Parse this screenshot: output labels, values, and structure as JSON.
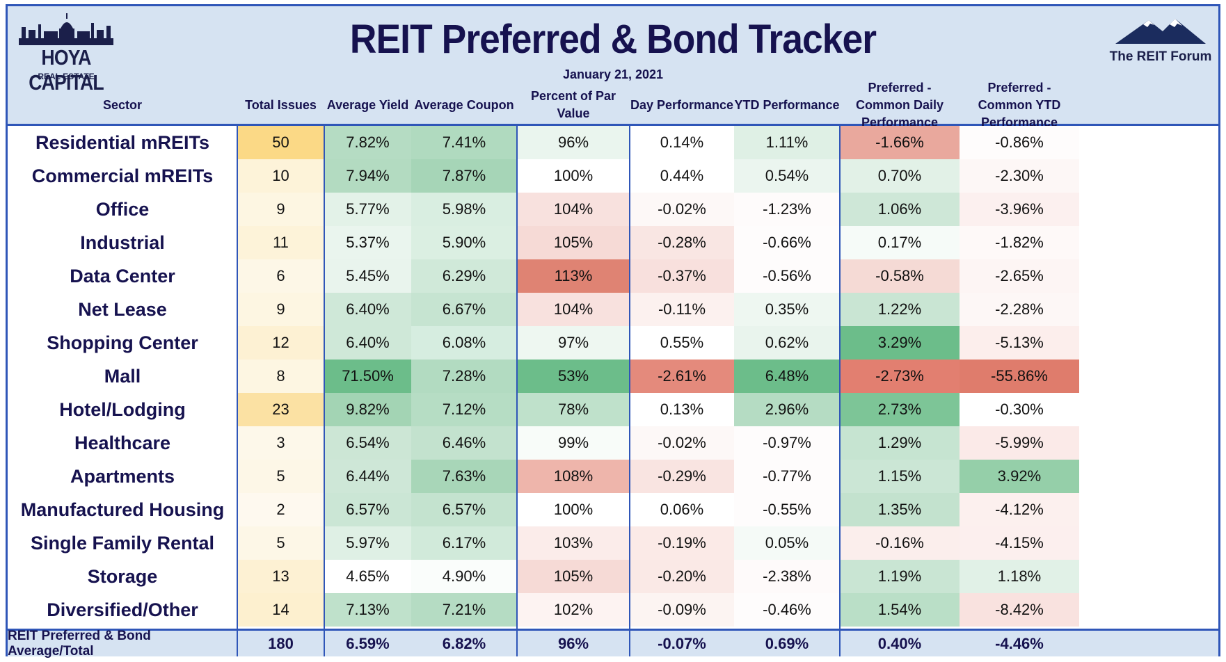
{
  "header": {
    "title": "REIT Preferred & Bond Tracker",
    "date": "January 21, 2021",
    "logo_left_line1": "HOYA CAPITAL",
    "logo_left_line2": "REAL ESTATE",
    "logo_right": "The REIT Forum"
  },
  "columns": [
    "Sector",
    "Total Issues",
    "Average Yield",
    "Average Coupon",
    "Percent of Par Value",
    "Day Performance",
    "YTD Performance",
    "Preferred - Common Daily Performance",
    "Preferred - Common YTD Performance"
  ],
  "chart_data": {
    "type": "table",
    "title": "REIT Preferred & Bond Tracker",
    "rows": [
      {
        "sector": "Residential mREITs",
        "issues": "50",
        "yield": "7.82%",
        "coupon": "7.41%",
        "par": "96%",
        "day": "0.14%",
        "ytd": "1.11%",
        "pc_daily": "-1.66%",
        "pc_ytd": "-0.86%"
      },
      {
        "sector": "Commercial mREITs",
        "issues": "10",
        "yield": "7.94%",
        "coupon": "7.87%",
        "par": "100%",
        "day": "0.44%",
        "ytd": "0.54%",
        "pc_daily": "0.70%",
        "pc_ytd": "-2.30%"
      },
      {
        "sector": "Office",
        "issues": "9",
        "yield": "5.77%",
        "coupon": "5.98%",
        "par": "104%",
        "day": "-0.02%",
        "ytd": "-1.23%",
        "pc_daily": "1.06%",
        "pc_ytd": "-3.96%"
      },
      {
        "sector": "Industrial",
        "issues": "11",
        "yield": "5.37%",
        "coupon": "5.90%",
        "par": "105%",
        "day": "-0.28%",
        "ytd": "-0.66%",
        "pc_daily": "0.17%",
        "pc_ytd": "-1.82%"
      },
      {
        "sector": "Data Center",
        "issues": "6",
        "yield": "5.45%",
        "coupon": "6.29%",
        "par": "113%",
        "day": "-0.37%",
        "ytd": "-0.56%",
        "pc_daily": "-0.58%",
        "pc_ytd": "-2.65%"
      },
      {
        "sector": "Net Lease",
        "issues": "9",
        "yield": "6.40%",
        "coupon": "6.67%",
        "par": "104%",
        "day": "-0.11%",
        "ytd": "0.35%",
        "pc_daily": "1.22%",
        "pc_ytd": "-2.28%"
      },
      {
        "sector": "Shopping Center",
        "issues": "12",
        "yield": "6.40%",
        "coupon": "6.08%",
        "par": "97%",
        "day": "0.55%",
        "ytd": "0.62%",
        "pc_daily": "3.29%",
        "pc_ytd": "-5.13%"
      },
      {
        "sector": "Mall",
        "issues": "8",
        "yield": "71.50%",
        "coupon": "7.28%",
        "par": "53%",
        "day": "-2.61%",
        "ytd": "6.48%",
        "pc_daily": "-2.73%",
        "pc_ytd": "-55.86%"
      },
      {
        "sector": "Hotel/Lodging",
        "issues": "23",
        "yield": "9.82%",
        "coupon": "7.12%",
        "par": "78%",
        "day": "0.13%",
        "ytd": "2.96%",
        "pc_daily": "2.73%",
        "pc_ytd": "-0.30%"
      },
      {
        "sector": "Healthcare",
        "issues": "3",
        "yield": "6.54%",
        "coupon": "6.46%",
        "par": "99%",
        "day": "-0.02%",
        "ytd": "-0.97%",
        "pc_daily": "1.29%",
        "pc_ytd": "-5.99%"
      },
      {
        "sector": "Apartments",
        "issues": "5",
        "yield": "6.44%",
        "coupon": "7.63%",
        "par": "108%",
        "day": "-0.29%",
        "ytd": "-0.77%",
        "pc_daily": "1.15%",
        "pc_ytd": "3.92%"
      },
      {
        "sector": "Manufactured Housing",
        "issues": "2",
        "yield": "6.57%",
        "coupon": "6.57%",
        "par": "100%",
        "day": "0.06%",
        "ytd": "-0.55%",
        "pc_daily": "1.35%",
        "pc_ytd": "-4.12%"
      },
      {
        "sector": "Single Family Rental",
        "issues": "5",
        "yield": "5.97%",
        "coupon": "6.17%",
        "par": "103%",
        "day": "-0.19%",
        "ytd": "0.05%",
        "pc_daily": "-0.16%",
        "pc_ytd": "-4.15%"
      },
      {
        "sector": "Storage",
        "issues": "13",
        "yield": "4.65%",
        "coupon": "4.90%",
        "par": "105%",
        "day": "-0.20%",
        "ytd": "-2.38%",
        "pc_daily": "1.19%",
        "pc_ytd": "1.18%"
      },
      {
        "sector": "Diversified/Other",
        "issues": "14",
        "yield": "7.13%",
        "coupon": "7.21%",
        "par": "102%",
        "day": "-0.09%",
        "ytd": "-0.46%",
        "pc_daily": "1.54%",
        "pc_ytd": "-8.42%"
      }
    ],
    "total": {
      "sector": "REIT Preferred & Bond Average/Total",
      "issues": "180",
      "yield": "6.59%",
      "coupon": "6.82%",
      "par": "96%",
      "day": "-0.07%",
      "ytd": "0.69%",
      "pc_daily": "0.40%",
      "pc_ytd": "-4.46%"
    }
  },
  "cell_colors": {
    "issues": [
      "#fbd986",
      "#fdf3d9",
      "#fdf6e2",
      "#fdf3d9",
      "#fdf7e7",
      "#fdf6e2",
      "#fdf1d3",
      "#fdf6e2",
      "#fbe1a3",
      "#fdf8ea",
      "#fdf7e7",
      "#fef9ef",
      "#fdf7e7",
      "#fdf1d3",
      "#fdf0cf"
    ],
    "yield": [
      "#b5dcc3",
      "#b3dbc1",
      "#e3f2e8",
      "#eaf5ee",
      "#e9f4ed",
      "#cfe8d8",
      "#cfe8d8",
      "#6cbd8a",
      "#a3d4b4",
      "#cce6d5",
      "#cee7d7",
      "#cbe6d5",
      "#dff0e5",
      "#ffffff",
      "#bfe1cb"
    ],
    "coupon": [
      "#b0dabf",
      "#a6d5b7",
      "#d9eee1",
      "#dbefe2",
      "#d0e9d9",
      "#c6e4d1",
      "#d6ede0",
      "#b2dbc1",
      "#b6ddc4",
      "#c3e2ce",
      "#a8d6b8",
      "#c4e3cf",
      "#d1eada",
      "#fafdfb",
      "#b5dcc3"
    ],
    "par": [
      "#eaf5ee",
      "#ffffff",
      "#f8e1de",
      "#f6dad6",
      "#df8373",
      "#f8e1de",
      "#eef7f1",
      "#6cbd8a",
      "#bfe1cb",
      "#f8fcf9",
      "#eeb5ab",
      "#ffffff",
      "#fbecea",
      "#f6dad6",
      "#fdf3f2"
    ],
    "day": [
      "#ffffff",
      "#ffffff",
      "#fdf8f7",
      "#f9e6e3",
      "#f8e0dd",
      "#fcf1ef",
      "#ffffff",
      "#e48a7c",
      "#ffffff",
      "#fdf8f7",
      "#f9e4e1",
      "#ffffff",
      "#fbeae7",
      "#fae9e6",
      "#fcf4f2"
    ],
    "ytd": [
      "#dff0e5",
      "#ebf5ef",
      "#fefbfb",
      "#fefcfc",
      "#fefcfc",
      "#eef7f1",
      "#e9f4ed",
      "#6cbd8a",
      "#b5dcc3",
      "#fefcfc",
      "#fefcfc",
      "#fefcfc",
      "#f5faf7",
      "#fefafa",
      "#fefcfc"
    ],
    "pc_daily": [
      "#e9a89d",
      "#e2f1e7",
      "#cee7d7",
      "#f6fbf8",
      "#f5dad5",
      "#c9e5d3",
      "#6cbd8a",
      "#e27f70",
      "#7dc597",
      "#c6e4d1",
      "#cbe6d5",
      "#c3e2ce",
      "#fbeeec",
      "#c9e5d3",
      "#badfc7"
    ],
    "pc_ytd": [
      "#fefcfc",
      "#fdf7f6",
      "#fcf0ef",
      "#fef9f8",
      "#fdf5f4",
      "#fdf7f6",
      "#fceeec",
      "#df7c6c",
      "#ffffff",
      "#fbeae8",
      "#95cfa9",
      "#fcf0ee",
      "#fcefee",
      "#e1f1e7",
      "#f9e2df"
    ]
  },
  "colors": {
    "border": "#2f56b8",
    "header_bg": "#d6e3f2",
    "title": "#16124f"
  },
  "icons": {
    "logo_left": "capitol-skyline-icon",
    "logo_right": "mountain-icon"
  }
}
